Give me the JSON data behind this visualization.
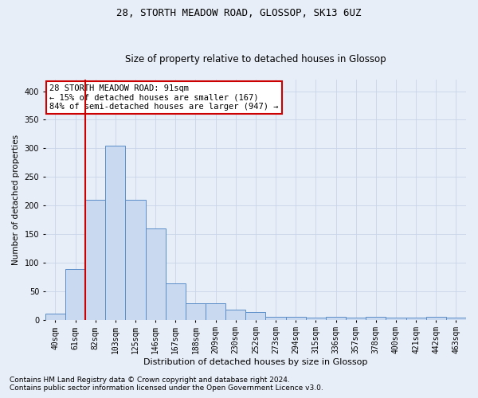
{
  "title1": "28, STORTH MEADOW ROAD, GLOSSOP, SK13 6UZ",
  "title2": "Size of property relative to detached houses in Glossop",
  "xlabel": "Distribution of detached houses by size in Glossop",
  "ylabel": "Number of detached properties",
  "categories": [
    "40sqm",
    "61sqm",
    "82sqm",
    "103sqm",
    "125sqm",
    "146sqm",
    "167sqm",
    "188sqm",
    "209sqm",
    "230sqm",
    "252sqm",
    "273sqm",
    "294sqm",
    "315sqm",
    "336sqm",
    "357sqm",
    "378sqm",
    "400sqm",
    "421sqm",
    "442sqm",
    "463sqm"
  ],
  "values": [
    10,
    88,
    210,
    305,
    210,
    160,
    63,
    28,
    28,
    18,
    13,
    5,
    5,
    4,
    5,
    4,
    5,
    4,
    4,
    5,
    4
  ],
  "bar_color": "#c9d9ef",
  "bar_edge_color": "#5b8dc8",
  "annotation_text": "28 STORTH MEADOW ROAD: 91sqm\n← 15% of detached houses are smaller (167)\n84% of semi-detached houses are larger (947) →",
  "annotation_box_color": "#ffffff",
  "annotation_box_edge": "#cc0000",
  "vline_color": "#cc0000",
  "vline_x": 1.5,
  "ylim": [
    0,
    420
  ],
  "yticks": [
    0,
    50,
    100,
    150,
    200,
    250,
    300,
    350,
    400
  ],
  "grid_color": "#c8d4e8",
  "background_color": "#e8eef8",
  "footer1": "Contains HM Land Registry data © Crown copyright and database right 2024.",
  "footer2": "Contains public sector information licensed under the Open Government Licence v3.0.",
  "title1_fontsize": 9,
  "title2_fontsize": 8.5,
  "xlabel_fontsize": 8,
  "ylabel_fontsize": 7.5,
  "tick_fontsize": 7,
  "annotation_fontsize": 7.5,
  "footer_fontsize": 6.5
}
